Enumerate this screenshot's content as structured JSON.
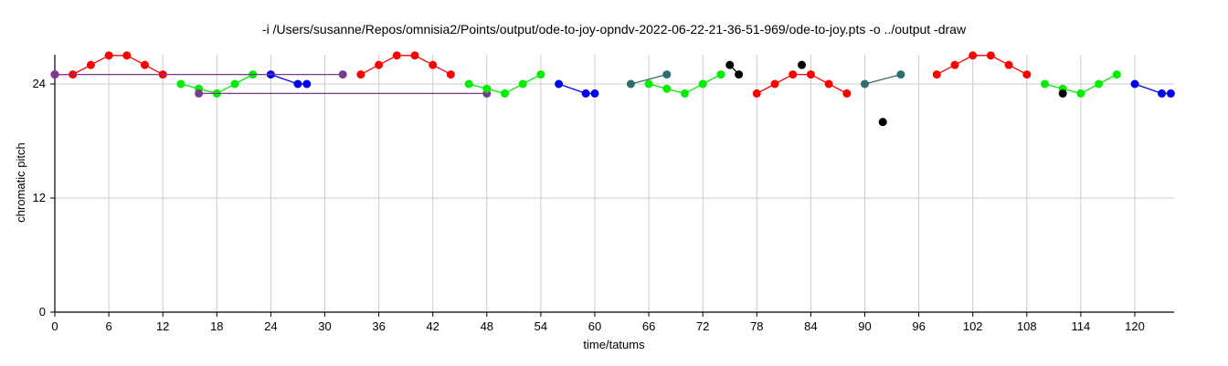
{
  "chart_data": {
    "type": "scatter",
    "title": "-i /Users/susanne/Repos/omnisia2/Points/output/ode-to-joy-opndv-2022-06-22-21-36-51-969/ode-to-joy.pts -o ../output -draw",
    "xlabel": "time/tatums",
    "ylabel": "chromatic pitch",
    "xlim": [
      0,
      123
    ],
    "ylim": [
      0,
      25
    ],
    "xticks": [
      0,
      6,
      12,
      18,
      24,
      30,
      36,
      42,
      48,
      54,
      60,
      66,
      72,
      78,
      84,
      90,
      96,
      102,
      108,
      114,
      120
    ],
    "yticks": [
      0,
      12,
      24
    ],
    "grid": true,
    "colors": {
      "red": "#ff0000",
      "green": "#00ee00",
      "blue": "#0000ee",
      "purple": "#7a3b8f",
      "teal": "#2e6e6e",
      "black": "#000000"
    },
    "series": [
      {
        "color": "red",
        "points": [
          [
            0,
            25
          ],
          [
            2,
            25
          ],
          [
            4,
            26
          ],
          [
            6,
            27
          ],
          [
            8,
            27
          ],
          [
            10,
            26
          ],
          [
            12,
            25
          ]
        ]
      },
      {
        "color": "green",
        "points": [
          [
            14,
            24
          ],
          [
            16,
            23.5
          ],
          [
            18,
            23
          ],
          [
            20,
            24
          ],
          [
            22,
            25
          ]
        ]
      },
      {
        "color": "blue",
        "points": [
          [
            24,
            25
          ],
          [
            27,
            24
          ],
          [
            28,
            24
          ]
        ]
      },
      {
        "color": "purple",
        "points": [
          [
            0,
            25
          ],
          [
            32,
            25
          ]
        ]
      },
      {
        "color": "purple",
        "points": [
          [
            16,
            23
          ],
          [
            48,
            23
          ]
        ]
      },
      {
        "color": "red",
        "points": [
          [
            34,
            25
          ],
          [
            36,
            26
          ],
          [
            38,
            27
          ],
          [
            40,
            27
          ],
          [
            42,
            26
          ],
          [
            44,
            25
          ]
        ]
      },
      {
        "color": "green",
        "points": [
          [
            46,
            24
          ],
          [
            48,
            23.5
          ],
          [
            50,
            23
          ],
          [
            52,
            24
          ],
          [
            54,
            25
          ]
        ]
      },
      {
        "color": "blue",
        "points": [
          [
            56,
            24
          ],
          [
            59,
            23
          ],
          [
            60,
            23
          ]
        ]
      },
      {
        "color": "teal",
        "points": [
          [
            64,
            24
          ],
          [
            68,
            25
          ]
        ]
      },
      {
        "color": "green",
        "points": [
          [
            66,
            24
          ],
          [
            68,
            23.5
          ],
          [
            70,
            23
          ],
          [
            72,
            24
          ],
          [
            74,
            25
          ]
        ]
      },
      {
        "color": "black",
        "points": [
          [
            75,
            26
          ],
          [
            76,
            25
          ]
        ]
      },
      {
        "color": "red",
        "points": [
          [
            78,
            23
          ],
          [
            80,
            24
          ],
          [
            82,
            25
          ],
          [
            84,
            25
          ],
          [
            86,
            24
          ],
          [
            88,
            23
          ]
        ]
      },
      {
        "color": "black",
        "points": [
          [
            83,
            26
          ]
        ]
      },
      {
        "color": "teal",
        "points": [
          [
            90,
            24
          ],
          [
            94,
            25
          ]
        ]
      },
      {
        "color": "black",
        "points": [
          [
            92,
            20
          ]
        ]
      },
      {
        "color": "red",
        "points": [
          [
            98,
            25
          ],
          [
            100,
            26
          ],
          [
            102,
            27
          ],
          [
            104,
            27
          ],
          [
            106,
            26
          ],
          [
            108,
            25
          ]
        ]
      },
      {
        "color": "green",
        "points": [
          [
            110,
            24
          ],
          [
            112,
            23.5
          ],
          [
            114,
            23
          ],
          [
            116,
            24
          ],
          [
            118,
            25
          ]
        ]
      },
      {
        "color": "black",
        "points": [
          [
            112,
            23
          ]
        ]
      },
      {
        "color": "blue",
        "points": [
          [
            120,
            24
          ],
          [
            123,
            23
          ],
          [
            124,
            23
          ]
        ]
      }
    ]
  }
}
